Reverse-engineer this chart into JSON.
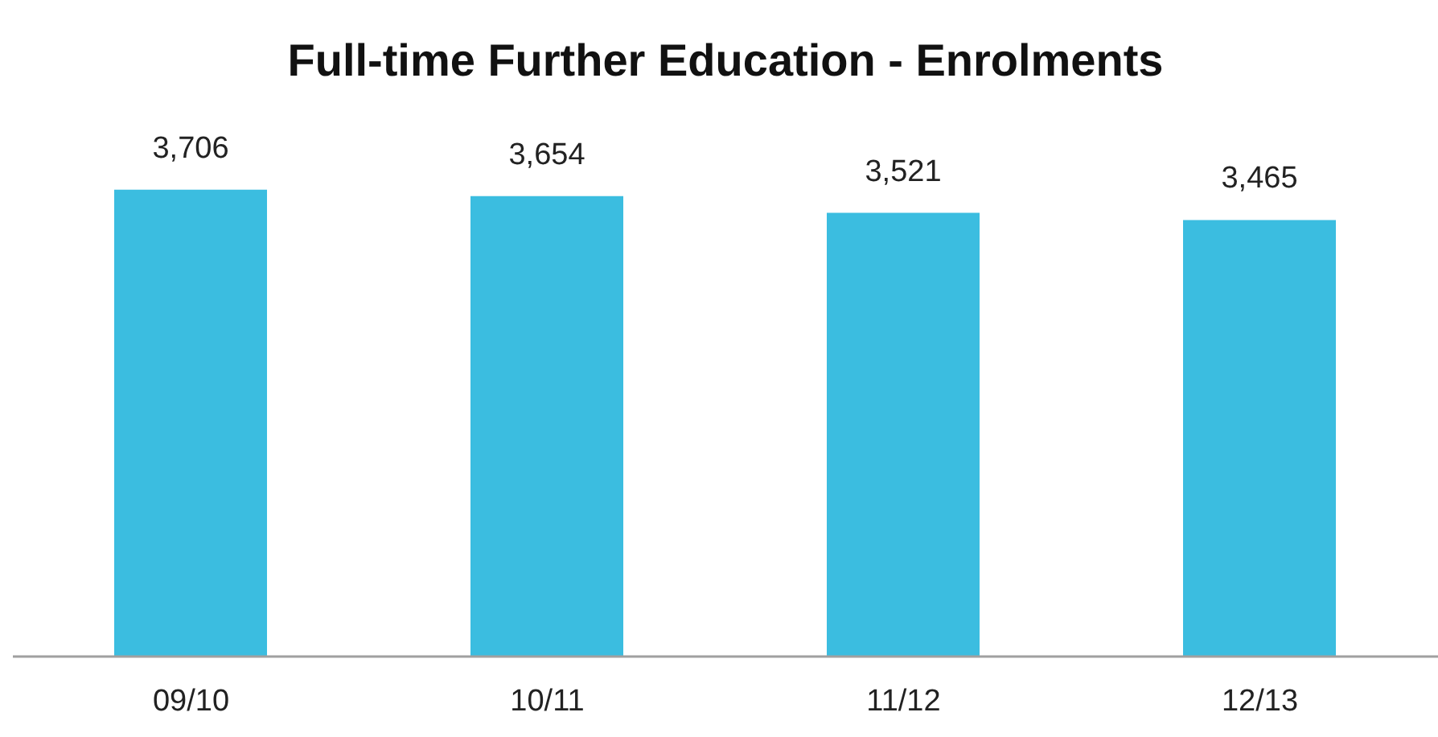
{
  "chart_data": {
    "type": "bar",
    "title": "Full-time Further Education - Enrolments",
    "categories": [
      "09/10",
      "10/11",
      "11/12",
      "12/13"
    ],
    "values": [
      3706,
      3654,
      3521,
      3465
    ],
    "color": "#3bbde0",
    "value_labels": [
      "3,706",
      "3,654",
      "3,521",
      "3,465"
    ],
    "tick_labels": "x",
    "grid": false,
    "legend": false
  }
}
